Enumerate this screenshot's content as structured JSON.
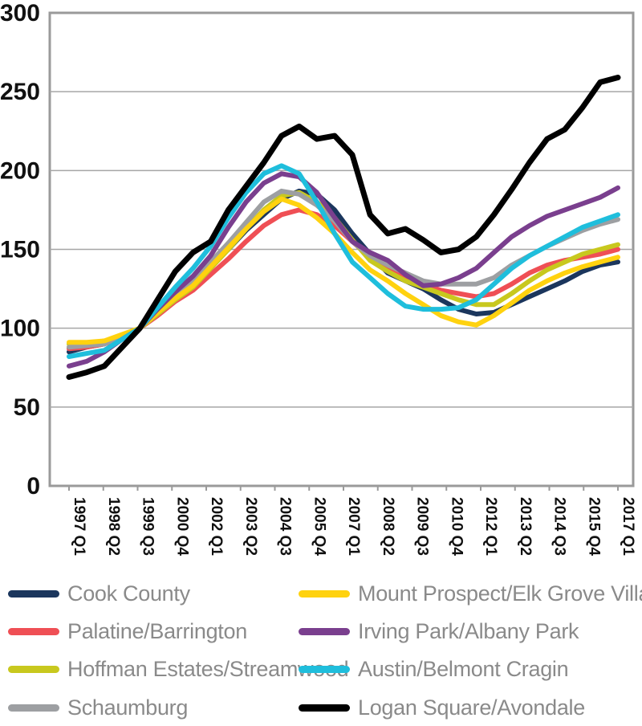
{
  "chart_data": {
    "type": "line",
    "title": "",
    "xlabel": "",
    "ylabel": "",
    "ylim": [
      0,
      300
    ],
    "yticks": [
      "0",
      "50",
      "100",
      "150",
      "200",
      "250",
      "300"
    ],
    "x_tick_labels": [
      "1997 Q1",
      "1998 Q2",
      "1999 Q3",
      "2000 Q4",
      "2002 Q1",
      "2003 Q2",
      "2004 Q3",
      "2005 Q4",
      "2007 Q1",
      "2008 Q2",
      "2009 Q3",
      "2010 Q4",
      "2012 Q1",
      "2013 Q2",
      "2014 Q3",
      "2015 Q4",
      "2017 Q1"
    ],
    "series": [
      {
        "name": "Cook County",
        "color": "#1b365d",
        "points": [
          [
            0,
            85
          ],
          [
            1,
            88
          ],
          [
            2,
            90
          ],
          [
            3,
            95
          ],
          [
            4,
            100
          ],
          [
            5,
            110
          ],
          [
            6,
            120
          ],
          [
            7,
            128
          ],
          [
            8,
            140
          ],
          [
            9,
            150
          ],
          [
            10,
            162
          ],
          [
            11,
            172
          ],
          [
            12,
            182
          ],
          [
            13,
            187
          ],
          [
            14,
            185
          ],
          [
            15,
            175
          ],
          [
            16,
            160
          ],
          [
            17,
            147
          ],
          [
            18,
            135
          ],
          [
            19,
            130
          ],
          [
            20,
            125
          ],
          [
            21,
            118
          ],
          [
            22,
            112
          ],
          [
            23,
            109
          ],
          [
            24,
            110
          ],
          [
            25,
            115
          ],
          [
            26,
            120
          ],
          [
            27,
            125
          ],
          [
            28,
            130
          ],
          [
            29,
            136
          ],
          [
            30,
            140
          ],
          [
            31,
            142
          ]
        ]
      },
      {
        "name": "Palatine/Barrington",
        "color": "#ef4f55",
        "points": [
          [
            0,
            87
          ],
          [
            1,
            88
          ],
          [
            2,
            90
          ],
          [
            3,
            94
          ],
          [
            4,
            100
          ],
          [
            5,
            108
          ],
          [
            6,
            117
          ],
          [
            7,
            124
          ],
          [
            8,
            134
          ],
          [
            9,
            144
          ],
          [
            10,
            155
          ],
          [
            11,
            165
          ],
          [
            12,
            172
          ],
          [
            13,
            175
          ],
          [
            14,
            172
          ],
          [
            15,
            165
          ],
          [
            16,
            155
          ],
          [
            17,
            145
          ],
          [
            18,
            138
          ],
          [
            19,
            133
          ],
          [
            20,
            128
          ],
          [
            21,
            124
          ],
          [
            22,
            122
          ],
          [
            23,
            120
          ],
          [
            24,
            122
          ],
          [
            25,
            128
          ],
          [
            26,
            135
          ],
          [
            27,
            140
          ],
          [
            28,
            143
          ],
          [
            29,
            145
          ],
          [
            30,
            147
          ],
          [
            31,
            150
          ]
        ]
      },
      {
        "name": "Hoffman Estates/Streamwood",
        "color": "#c8c81e",
        "points": [
          [
            0,
            90
          ],
          [
            1,
            90
          ],
          [
            2,
            91
          ],
          [
            3,
            95
          ],
          [
            4,
            100
          ],
          [
            5,
            109
          ],
          [
            6,
            118
          ],
          [
            7,
            126
          ],
          [
            8,
            138
          ],
          [
            9,
            150
          ],
          [
            10,
            163
          ],
          [
            11,
            175
          ],
          [
            12,
            184
          ],
          [
            13,
            186
          ],
          [
            14,
            180
          ],
          [
            15,
            170
          ],
          [
            16,
            156
          ],
          [
            17,
            143
          ],
          [
            18,
            136
          ],
          [
            19,
            130
          ],
          [
            20,
            126
          ],
          [
            21,
            122
          ],
          [
            22,
            118
          ],
          [
            23,
            115
          ],
          [
            24,
            115
          ],
          [
            25,
            122
          ],
          [
            26,
            130
          ],
          [
            27,
            137
          ],
          [
            28,
            142
          ],
          [
            29,
            147
          ],
          [
            30,
            150
          ],
          [
            31,
            153
          ]
        ]
      },
      {
        "name": "Schaumburg",
        "color": "#9d9fa2",
        "points": [
          [
            0,
            88
          ],
          [
            1,
            89
          ],
          [
            2,
            90
          ],
          [
            3,
            95
          ],
          [
            4,
            100
          ],
          [
            5,
            110
          ],
          [
            6,
            120
          ],
          [
            7,
            130
          ],
          [
            8,
            142
          ],
          [
            9,
            154
          ],
          [
            10,
            167
          ],
          [
            11,
            180
          ],
          [
            12,
            187
          ],
          [
            13,
            185
          ],
          [
            14,
            178
          ],
          [
            15,
            168
          ],
          [
            16,
            155
          ],
          [
            17,
            146
          ],
          [
            18,
            140
          ],
          [
            19,
            135
          ],
          [
            20,
            130
          ],
          [
            21,
            128
          ],
          [
            22,
            128
          ],
          [
            23,
            128
          ],
          [
            24,
            132
          ],
          [
            25,
            140
          ],
          [
            26,
            146
          ],
          [
            27,
            152
          ],
          [
            28,
            157
          ],
          [
            29,
            162
          ],
          [
            30,
            166
          ],
          [
            31,
            169
          ]
        ]
      },
      {
        "name": "Mount Prospect/Elk Grove Village",
        "color": "#ffd20f",
        "points": [
          [
            0,
            91
          ],
          [
            1,
            91
          ],
          [
            2,
            92
          ],
          [
            3,
            96
          ],
          [
            4,
            100
          ],
          [
            5,
            110
          ],
          [
            6,
            119
          ],
          [
            7,
            127
          ],
          [
            8,
            139
          ],
          [
            9,
            151
          ],
          [
            10,
            163
          ],
          [
            11,
            174
          ],
          [
            12,
            182
          ],
          [
            13,
            178
          ],
          [
            14,
            170
          ],
          [
            15,
            160
          ],
          [
            16,
            148
          ],
          [
            17,
            137
          ],
          [
            18,
            130
          ],
          [
            19,
            122
          ],
          [
            20,
            115
          ],
          [
            21,
            108
          ],
          [
            22,
            104
          ],
          [
            23,
            102
          ],
          [
            24,
            108
          ],
          [
            25,
            116
          ],
          [
            26,
            124
          ],
          [
            27,
            130
          ],
          [
            28,
            135
          ],
          [
            29,
            139
          ],
          [
            30,
            142
          ],
          [
            31,
            145
          ]
        ]
      },
      {
        "name": "Irving Park/Albany Park",
        "color": "#7a3f8e",
        "points": [
          [
            0,
            76
          ],
          [
            1,
            79
          ],
          [
            2,
            85
          ],
          [
            3,
            93
          ],
          [
            4,
            100
          ],
          [
            5,
            112
          ],
          [
            6,
            123
          ],
          [
            7,
            133
          ],
          [
            8,
            146
          ],
          [
            9,
            164
          ],
          [
            10,
            180
          ],
          [
            11,
            192
          ],
          [
            12,
            198
          ],
          [
            13,
            196
          ],
          [
            14,
            186
          ],
          [
            15,
            170
          ],
          [
            16,
            155
          ],
          [
            17,
            148
          ],
          [
            18,
            143
          ],
          [
            19,
            134
          ],
          [
            20,
            127
          ],
          [
            21,
            128
          ],
          [
            22,
            132
          ],
          [
            23,
            138
          ],
          [
            24,
            148
          ],
          [
            25,
            158
          ],
          [
            26,
            165
          ],
          [
            27,
            171
          ],
          [
            28,
            175
          ],
          [
            29,
            179
          ],
          [
            30,
            183
          ],
          [
            31,
            189
          ]
        ]
      },
      {
        "name": "Austin/Belmont Cragin",
        "color": "#1fbedc",
        "points": [
          [
            0,
            82
          ],
          [
            1,
            84
          ],
          [
            2,
            86
          ],
          [
            3,
            93
          ],
          [
            4,
            100
          ],
          [
            5,
            113
          ],
          [
            6,
            126
          ],
          [
            7,
            138
          ],
          [
            8,
            152
          ],
          [
            9,
            170
          ],
          [
            10,
            186
          ],
          [
            11,
            198
          ],
          [
            12,
            203
          ],
          [
            13,
            198
          ],
          [
            14,
            180
          ],
          [
            15,
            160
          ],
          [
            16,
            142
          ],
          [
            17,
            132
          ],
          [
            18,
            122
          ],
          [
            19,
            114
          ],
          [
            20,
            112
          ],
          [
            21,
            112
          ],
          [
            22,
            113
          ],
          [
            23,
            118
          ],
          [
            24,
            128
          ],
          [
            25,
            138
          ],
          [
            26,
            146
          ],
          [
            27,
            152
          ],
          [
            28,
            158
          ],
          [
            29,
            164
          ],
          [
            30,
            168
          ],
          [
            31,
            172
          ]
        ]
      },
      {
        "name": "Logan Square/Avondale",
        "color": "#000000",
        "points": [
          [
            0,
            69
          ],
          [
            1,
            72
          ],
          [
            2,
            76
          ],
          [
            3,
            88
          ],
          [
            4,
            100
          ],
          [
            5,
            118
          ],
          [
            6,
            136
          ],
          [
            7,
            148
          ],
          [
            8,
            155
          ],
          [
            9,
            175
          ],
          [
            10,
            190
          ],
          [
            11,
            205
          ],
          [
            12,
            222
          ],
          [
            13,
            228
          ],
          [
            14,
            220
          ],
          [
            15,
            222
          ],
          [
            16,
            210
          ],
          [
            17,
            172
          ],
          [
            18,
            160
          ],
          [
            19,
            163
          ],
          [
            20,
            156
          ],
          [
            21,
            148
          ],
          [
            22,
            150
          ],
          [
            23,
            158
          ],
          [
            24,
            172
          ],
          [
            25,
            188
          ],
          [
            26,
            205
          ],
          [
            27,
            220
          ],
          [
            28,
            226
          ],
          [
            29,
            240
          ],
          [
            30,
            256
          ],
          [
            31,
            259
          ]
        ]
      }
    ]
  }
}
